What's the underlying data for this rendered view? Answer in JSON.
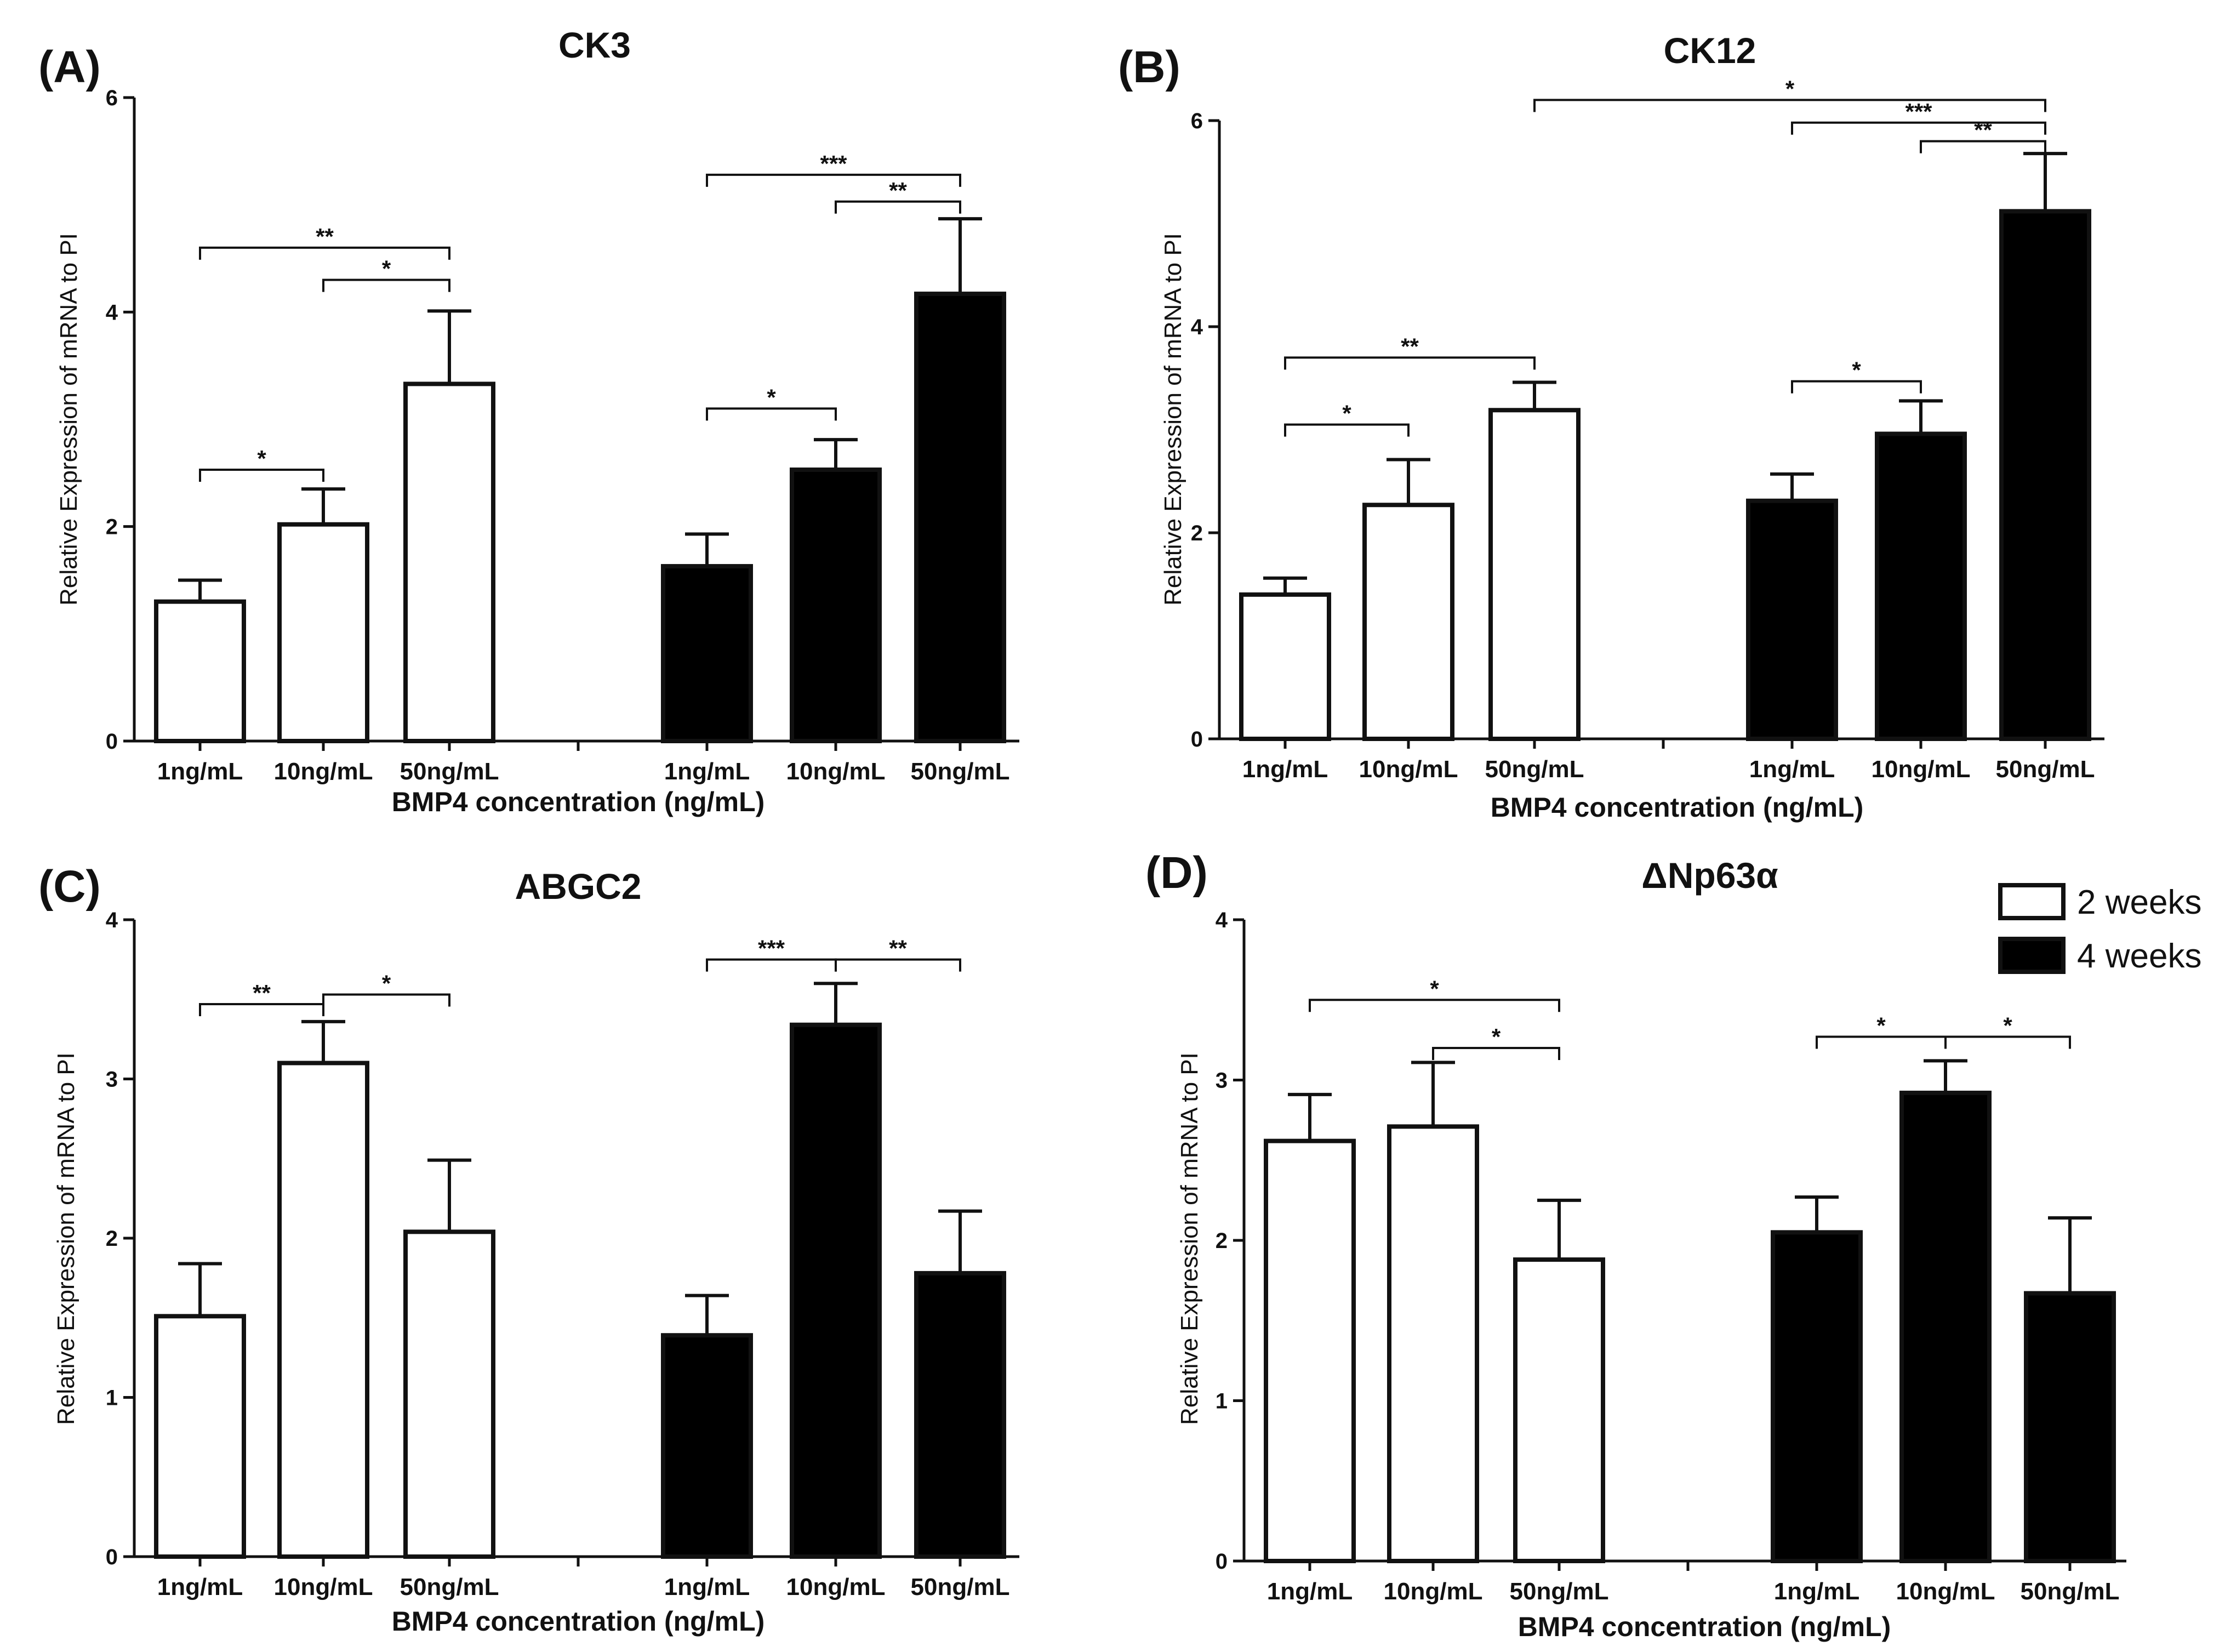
{
  "legend": {
    "items": [
      {
        "label": "2 weeks",
        "color": "#ffffff"
      },
      {
        "label": "4 weeks",
        "color": "#000000"
      }
    ]
  },
  "chart_data": [
    {
      "type": "bar",
      "panel": "(A)",
      "title": "CK3",
      "xlabel": "BMP4 concentration (ng/mL)",
      "ylabel": "Relative Expression of mRNA to PI",
      "ylim": [
        0,
        6
      ],
      "yticks": [
        0,
        2,
        4,
        6
      ],
      "categories": [
        "1ng/mL",
        "10ng/mL",
        "50ng/mL"
      ],
      "category_labels": [
        "1ng/mL",
        "10ng/mL",
        "50ng/mL",
        "1ng/mL",
        "10ng/mL",
        "50ng/mL"
      ],
      "series": [
        {
          "name": "2 weeks",
          "values": [
            1.3,
            2.02,
            3.33
          ],
          "errors": [
            0.2,
            0.33,
            0.68
          ]
        },
        {
          "name": "4 weeks",
          "values": [
            1.63,
            2.53,
            4.17
          ],
          "errors": [
            0.3,
            0.28,
            0.7
          ]
        }
      ],
      "significance": [
        {
          "series": 0,
          "from": 0,
          "to": 1,
          "label": "*",
          "y": 2.53
        },
        {
          "series": 0,
          "from": 1,
          "to": 2,
          "label": "*",
          "y": 4.3
        },
        {
          "series": 0,
          "from": 0,
          "to": 2,
          "label": "**",
          "y": 4.6
        },
        {
          "series": 1,
          "from": 0,
          "to": 1,
          "label": "*",
          "y": 3.1
        },
        {
          "series": 1,
          "from": 1,
          "to": 2,
          "label": "**",
          "y": 5.03
        },
        {
          "series": 1,
          "from": 0,
          "to": 2,
          "label": "***",
          "y": 5.28
        }
      ]
    },
    {
      "type": "bar",
      "panel": "(B)",
      "title": "CK12",
      "xlabel": "BMP4 concentration (ng/mL)",
      "ylabel": "Relative Expression of mRNA to PI",
      "ylim": [
        0,
        6
      ],
      "yticks": [
        0,
        2,
        4,
        6
      ],
      "categories": [
        "1ng/mL",
        "10ng/mL",
        "50ng/mL"
      ],
      "category_labels": [
        "1ng/mL",
        "10ng/mL",
        "50ng/mL",
        "1ng/mL",
        "10ng/mL",
        "50ng/mL"
      ],
      "series": [
        {
          "name": "2 weeks",
          "values": [
            1.4,
            2.27,
            3.19
          ],
          "errors": [
            0.16,
            0.44,
            0.27
          ]
        },
        {
          "name": "4 weeks",
          "values": [
            2.31,
            2.96,
            5.12
          ],
          "errors": [
            0.26,
            0.32,
            0.56
          ]
        }
      ],
      "significance": [
        {
          "series": 0,
          "from": 0,
          "to": 1,
          "label": "*",
          "y": 3.05
        },
        {
          "series": 0,
          "from": 0,
          "to": 2,
          "label": "**",
          "y": 3.7
        },
        {
          "series": 1,
          "from": 0,
          "to": 1,
          "label": "*",
          "y": 3.47
        },
        {
          "series": 1,
          "from": 1,
          "to": 2,
          "label": "**",
          "y": 5.8
        },
        {
          "series": 1,
          "from": 0,
          "to": 2,
          "label": "***",
          "y": 5.98
        },
        {
          "series": "cross",
          "from": 2,
          "to": 5,
          "label": "*",
          "y": 6.2
        }
      ]
    },
    {
      "type": "bar",
      "panel": "(C)",
      "title": "ABGC2",
      "xlabel": "BMP4 concentration (ng/mL)",
      "ylabel": "Relative Expression of mRNA to PI",
      "ylim": [
        0,
        4
      ],
      "yticks": [
        0,
        1,
        2,
        3,
        4
      ],
      "categories": [
        "1ng/mL",
        "10ng/mL",
        "50ng/mL"
      ],
      "category_labels": [
        "1ng/mL",
        "10ng/mL",
        "50ng/mL",
        "1ng/mL",
        "10ng/mL",
        "50ng/mL"
      ],
      "series": [
        {
          "name": "2 weeks",
          "values": [
            1.51,
            3.1,
            2.04
          ],
          "errors": [
            0.33,
            0.26,
            0.45
          ]
        },
        {
          "name": "4 weeks",
          "values": [
            1.39,
            3.34,
            1.78
          ],
          "errors": [
            0.25,
            0.26,
            0.39
          ]
        }
      ],
      "significance": [
        {
          "series": 0,
          "from": 0,
          "to": 1,
          "label": "**",
          "y": 3.47
        },
        {
          "series": 0,
          "from": 1,
          "to": 2,
          "label": "*",
          "y": 3.53
        },
        {
          "series": 1,
          "from": 0,
          "to": 1,
          "label": "***",
          "y": 3.75
        },
        {
          "series": 1,
          "from": 1,
          "to": 2,
          "label": "**",
          "y": 3.75
        }
      ]
    },
    {
      "type": "bar",
      "panel": "(D)",
      "title": "ΔNp63α",
      "xlabel": "BMP4 concentration (ng/mL)",
      "ylabel": "Relative Expression of mRNA to PI",
      "ylim": [
        0,
        4
      ],
      "yticks": [
        0,
        1,
        2,
        3,
        4
      ],
      "categories": [
        "1ng/mL",
        "10ng/mL",
        "50ng/mL"
      ],
      "category_labels": [
        "1ng/mL",
        "10ng/mL",
        "50ng/mL",
        "1ng/mL",
        "10ng/mL",
        "50ng/mL"
      ],
      "series": [
        {
          "name": "2 weeks",
          "values": [
            2.62,
            2.71,
            1.88
          ],
          "errors": [
            0.29,
            0.4,
            0.37
          ]
        },
        {
          "name": "4 weeks",
          "values": [
            2.05,
            2.92,
            1.67
          ],
          "errors": [
            0.22,
            0.2,
            0.47
          ]
        }
      ],
      "significance": [
        {
          "series": 0,
          "from": 1,
          "to": 2,
          "label": "*",
          "y": 3.2
        },
        {
          "series": 0,
          "from": 0,
          "to": 2,
          "label": "*",
          "y": 3.5
        },
        {
          "series": 1,
          "from": 0,
          "to": 1,
          "label": "*",
          "y": 3.27
        },
        {
          "series": 1,
          "from": 1,
          "to": 2,
          "label": "*",
          "y": 3.27
        }
      ]
    }
  ]
}
